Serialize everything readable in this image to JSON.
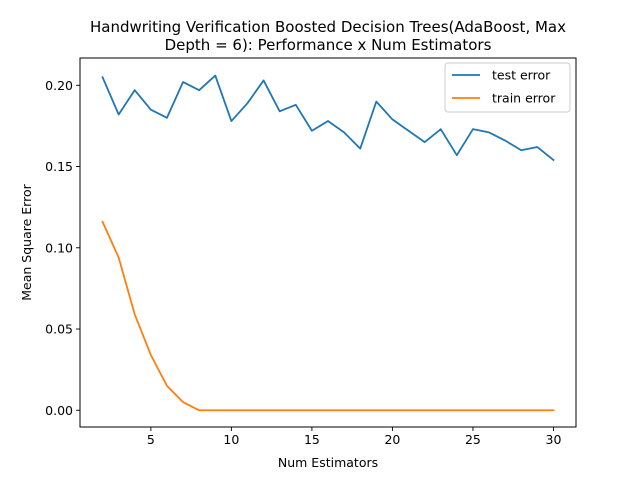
{
  "chart_data": {
    "type": "line",
    "title_lines": [
      "Handwriting Verification Boosted Decision Trees(AdaBoost, Max",
      "Depth = 6): Performance x Num Estimators"
    ],
    "xlabel": "Num Estimators",
    "ylabel": "Mean Square Error",
    "xlim": [
      0.6,
      31.4
    ],
    "ylim": [
      -0.0103,
      0.2168
    ],
    "xticks": [
      5,
      10,
      15,
      20,
      25,
      30
    ],
    "xtick_labels": [
      "5",
      "10",
      "15",
      "20",
      "25",
      "30"
    ],
    "yticks": [
      0.0,
      0.05,
      0.1,
      0.15,
      0.2
    ],
    "ytick_labels": [
      "0.00",
      "0.05",
      "0.10",
      "0.15",
      "0.20"
    ],
    "legend_position": "top-right",
    "x": [
      2,
      3,
      4,
      5,
      6,
      7,
      8,
      9,
      10,
      11,
      12,
      13,
      14,
      15,
      16,
      17,
      18,
      19,
      20,
      21,
      22,
      23,
      24,
      25,
      26,
      27,
      28,
      29,
      30
    ],
    "series": [
      {
        "name": "test error",
        "color": "#1f77b4",
        "values": [
          0.205,
          0.182,
          0.197,
          0.185,
          0.18,
          0.202,
          0.197,
          0.206,
          0.178,
          0.189,
          0.203,
          0.184,
          0.188,
          0.172,
          0.178,
          0.171,
          0.161,
          0.19,
          0.179,
          0.172,
          0.165,
          0.173,
          0.157,
          0.173,
          0.171,
          0.166,
          0.16,
          0.162,
          0.154
        ]
      },
      {
        "name": "train error",
        "color": "#ff7f0e",
        "values": [
          0.116,
          0.094,
          0.059,
          0.034,
          0.015,
          0.005,
          0.0,
          0.0,
          0.0,
          0.0,
          0.0,
          0.0,
          0.0,
          0.0,
          0.0,
          0.0,
          0.0,
          0.0,
          0.0,
          0.0,
          0.0,
          0.0,
          0.0,
          0.0,
          0.0,
          0.0,
          0.0,
          0.0,
          0.0
        ]
      }
    ]
  }
}
